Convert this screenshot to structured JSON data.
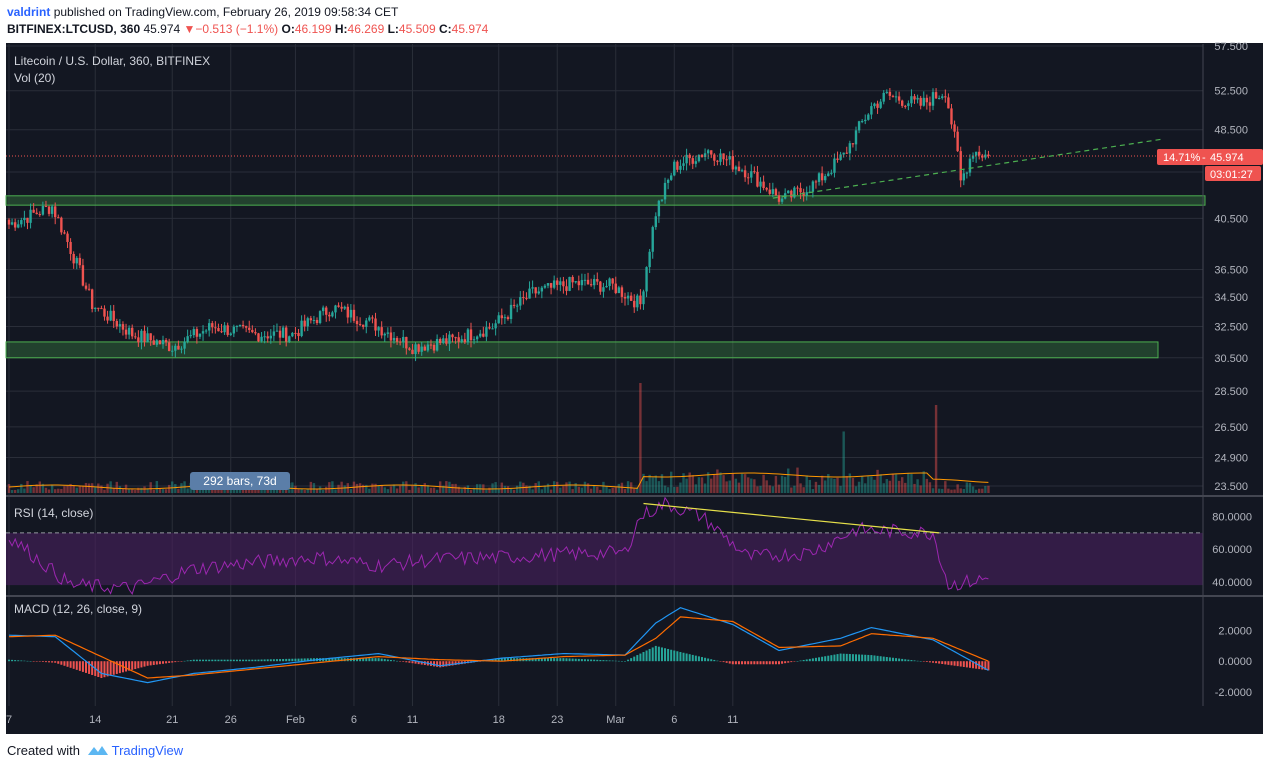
{
  "header": {
    "author": "valdrint",
    "published": "published on TradingView.com, February 26, 2019 09:58:34 CET",
    "symbol": "BITFINEX:LTCUSD, 360",
    "last": "45.974",
    "change_arrow": "▼",
    "change": "−0.513 (−1.1%)",
    "o_label": "O:",
    "o": "46.199",
    "h_label": "H:",
    "h": "46.269",
    "l_label": "L:",
    "l": "45.509",
    "c_label": "C:",
    "c": "45.974"
  },
  "legend": {
    "title": "Litecoin / U.S. Dollar, 360, BITFINEX",
    "vol": "Vol (20)",
    "rsi": "RSI (14, close)",
    "macd": "MACD (12, 26, close, 9)"
  },
  "badges": {
    "percent": "14.71%",
    "price": "45.974",
    "countdown": "03:01:27",
    "bars": "292 bars, 73d"
  },
  "footer": {
    "created": "Created with",
    "brand": "TradingView"
  },
  "colors": {
    "background": "#131722",
    "up": "#26a69a",
    "down": "#ef5350",
    "zone": "#4caf50",
    "trend": "#4caf50",
    "rsi": "#9c27b0",
    "rsi_band": "#4a1f5f",
    "divergence": "#e6e04a",
    "macd": "#2196f3",
    "signal": "#ff6d00",
    "vol_ma": "#ff9800",
    "grid": "#2a2e39",
    "axis_text": "#b2b5be",
    "price_badge": "#ef5350",
    "bars_badge": "#5b7ea8"
  },
  "chart_data": [
    {
      "type": "candlestick",
      "title": "Litecoin / U.S. Dollar, 360, BITFINEX",
      "y_scale": "log",
      "ylim": [
        23.5,
        57.5
      ],
      "y_ticks": [
        57.5,
        52.5,
        48.5,
        44.5,
        40.5,
        36.5,
        34.5,
        32.5,
        30.5,
        28.5,
        26.5,
        24.9,
        23.5
      ],
      "y_tick_labels": [
        "57.500",
        "52.500",
        "48.500",
        "44.500",
        "40.500",
        "36.500",
        "34.500",
        "32.500",
        "30.500",
        "28.500",
        "26.500",
        "24.900",
        "23.500"
      ],
      "x_ticks": [
        "7",
        "14",
        "21",
        "26",
        "Feb",
        "6",
        "11",
        "18",
        "23",
        "Mar",
        "6",
        "11"
      ],
      "last_price": 45.974,
      "close_path": [
        [
          0,
          40.0
        ],
        [
          14,
          41.5
        ],
        [
          27,
          34.0
        ],
        [
          40,
          32.0
        ],
        [
          53,
          31.2
        ],
        [
          66,
          32.5
        ],
        [
          79,
          32.0
        ],
        [
          92,
          32.0
        ],
        [
          105,
          33.8
        ],
        [
          118,
          32.7
        ],
        [
          131,
          31.2
        ],
        [
          144,
          31.6
        ],
        [
          157,
          32.5
        ],
        [
          170,
          34.8
        ],
        [
          183,
          35.5
        ],
        [
          196,
          35.3
        ],
        [
          205,
          34.0
        ],
        [
          210,
          41.0
        ],
        [
          216,
          45.0
        ],
        [
          227,
          46.5
        ],
        [
          240,
          44.5
        ],
        [
          251,
          42.0
        ],
        [
          262,
          43.5
        ],
        [
          271,
          46.0
        ],
        [
          280,
          50.8
        ],
        [
          285,
          52.0
        ],
        [
          296,
          51.0
        ],
        [
          304,
          52.5
        ],
        [
          308,
          46.0
        ],
        [
          309,
          43.6
        ],
        [
          313,
          46.5
        ],
        [
          318,
          45.974
        ]
      ],
      "support_zones": [
        [
          41.6,
          42.4
        ],
        [
          30.5,
          31.5
        ]
      ],
      "trendline": [
        [
          248,
          42.2
        ],
        [
          375,
          47.6
        ]
      ],
      "volume": {
        "label": "Vol (20)",
        "ma_period": 20,
        "spikes": [
          [
            205,
            1.0
          ],
          [
            301,
            0.8
          ],
          [
            271,
            0.45
          ]
        ]
      }
    },
    {
      "type": "line",
      "title": "RSI (14, close)",
      "ylim": [
        35,
        92
      ],
      "y_ticks": [
        80,
        60,
        40
      ],
      "y_tick_labels": [
        "80.0000",
        "60.0000",
        "40.0000"
      ],
      "overbought": 70,
      "oversold": 30,
      "series": [
        {
          "values": [
            [
              0,
              68
            ],
            [
              20,
              38
            ],
            [
              40,
              36
            ],
            [
              60,
              48
            ],
            [
              80,
              52
            ],
            [
              100,
              55
            ],
            [
              120,
              50
            ],
            [
              140,
              54
            ],
            [
              160,
              55
            ],
            [
              180,
              57
            ],
            [
              200,
              58
            ],
            [
              205,
              80
            ],
            [
              213,
              88
            ],
            [
              225,
              80
            ],
            [
              240,
              55
            ],
            [
              260,
              58
            ],
            [
              275,
              72
            ],
            [
              300,
              70
            ],
            [
              305,
              38
            ],
            [
              318,
              42
            ]
          ]
        }
      ],
      "divergence": [
        [
          206,
          88
        ],
        [
          302,
          70
        ]
      ]
    },
    {
      "type": "line",
      "title": "MACD (12, 26, close, 9)",
      "ylim": [
        -2.8,
        4.2
      ],
      "y_ticks": [
        2,
        0,
        -2
      ],
      "y_tick_labels": [
        "2.0000",
        "0.0000",
        "-2.0000"
      ],
      "series": [
        {
          "values": [
            [
              0,
              1.7
            ],
            [
              15,
              1.6
            ],
            [
              30,
              -0.8
            ],
            [
              45,
              -1.4
            ],
            [
              60,
              -0.8
            ],
            [
              80,
              -0.4
            ],
            [
              100,
              0.1
            ],
            [
              120,
              0.5
            ],
            [
              140,
              -0.3
            ],
            [
              160,
              0.2
            ],
            [
              180,
              0.5
            ],
            [
              200,
              0.4
            ],
            [
              210,
              2.5
            ],
            [
              218,
              3.5
            ],
            [
              235,
              2.4
            ],
            [
              250,
              0.7
            ],
            [
              270,
              1.5
            ],
            [
              280,
              2.2
            ],
            [
              300,
              1.4
            ],
            [
              318,
              -0.6
            ]
          ]
        },
        {
          "values": [
            [
              0,
              1.6
            ],
            [
              15,
              1.7
            ],
            [
              30,
              0.3
            ],
            [
              45,
              -1.1
            ],
            [
              60,
              -0.9
            ],
            [
              80,
              -0.5
            ],
            [
              100,
              -0.1
            ],
            [
              120,
              0.3
            ],
            [
              140,
              0.1
            ],
            [
              160,
              0.0
            ],
            [
              180,
              0.3
            ],
            [
              200,
              0.4
            ],
            [
              210,
              1.5
            ],
            [
              218,
              2.9
            ],
            [
              235,
              2.6
            ],
            [
              250,
              0.9
            ],
            [
              270,
              1.0
            ],
            [
              280,
              1.8
            ],
            [
              300,
              1.5
            ],
            [
              318,
              0.0
            ]
          ]
        }
      ]
    }
  ]
}
